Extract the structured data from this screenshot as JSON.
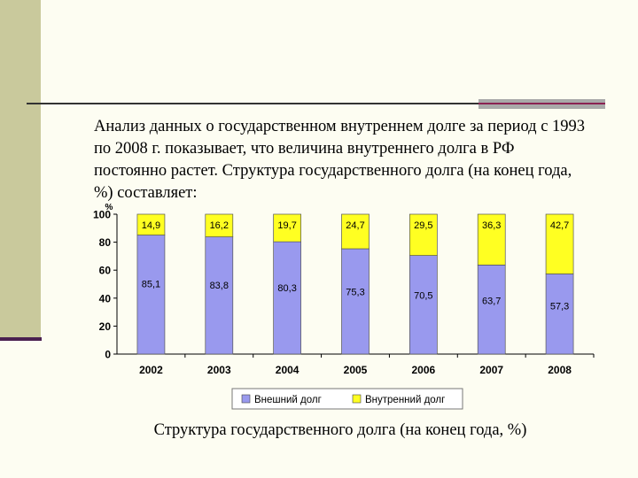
{
  "slide": {
    "intro_text": "Анализ данных о государственном внутреннем долге за период с 1993 по 2008 г. показывает, что величина внутреннего долга в РФ постоянно растет. Структура государственного долга (на конец года, %) составляет:",
    "caption": "Структура государственного долга (на конец года, %)"
  },
  "chart_data": {
    "type": "bar",
    "stacked": true,
    "categories": [
      "2002",
      "2003",
      "2004",
      "2005",
      "2006",
      "2007",
      "2008"
    ],
    "series": [
      {
        "name": "Внешний долг",
        "values": [
          85.1,
          83.8,
          80.3,
          75.3,
          70.5,
          63.7,
          57.3
        ],
        "color": "#9999ee",
        "labels": [
          "85,1",
          "83,8",
          "80,3",
          "75,3",
          "70,5",
          "63,7",
          "57,3"
        ]
      },
      {
        "name": "Внутренний долг",
        "values": [
          14.9,
          16.2,
          19.7,
          24.7,
          29.5,
          36.3,
          42.7
        ],
        "color": "#ffff22",
        "labels": [
          "14,9",
          "16,2",
          "19,7",
          "24,7",
          "29,5",
          "36,3",
          "42,7"
        ]
      }
    ],
    "ylabel": "%",
    "ylim": [
      0,
      100
    ],
    "yticks": [
      0,
      20,
      40,
      60,
      80,
      100
    ],
    "legend_position": "bottom",
    "grid": false
  }
}
